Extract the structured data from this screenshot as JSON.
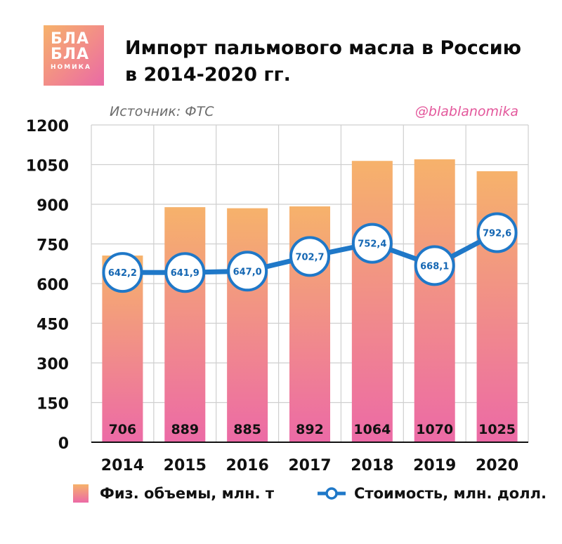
{
  "logo": {
    "line1": "БЛА",
    "line2": "БЛА",
    "line3": "НОМИКА"
  },
  "title": "Импорт пальмового масла в Россию в 2014-2020 гг.",
  "source": "Источник: ФТС",
  "handle": "@blablanomika",
  "colors": {
    "bar_top": "#f6b26b",
    "bar_bottom": "#ec6aa6",
    "line": "#1f78c8",
    "marker_text": "#1567b3",
    "grid": "#cfcfcf",
    "handle": "#e3579b"
  },
  "chart_data": {
    "type": "bar",
    "categories": [
      "2014",
      "2015",
      "2016",
      "2017",
      "2018",
      "2019",
      "2020"
    ],
    "series": [
      {
        "name": "Физ. объемы, млн. т",
        "type": "bar",
        "values": [
          706,
          889,
          885,
          892,
          1064,
          1070,
          1025
        ],
        "labels": [
          "706",
          "889",
          "885",
          "892",
          "1064",
          "1070",
          "1025"
        ]
      },
      {
        "name": "Стоимость, млн. долл.",
        "type": "line",
        "values": [
          642.2,
          641.9,
          647.0,
          702.7,
          752.4,
          668.1,
          792.6
        ],
        "labels": [
          "642,2",
          "641,9",
          "647,0",
          "702,7",
          "752,4",
          "668,1",
          "792,6"
        ]
      }
    ],
    "ylim": [
      0,
      1200
    ],
    "yticks": [
      0,
      150,
      300,
      450,
      600,
      750,
      900,
      1050,
      1200
    ],
    "grid": true,
    "legend_position": "bottom"
  }
}
